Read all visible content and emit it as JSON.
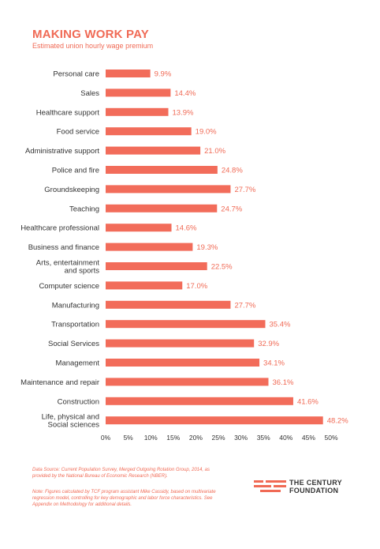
{
  "header": {
    "title": "MAKING WORK PAY",
    "subtitle": "Estimated union hourly wage premium"
  },
  "chart_data": {
    "type": "bar",
    "orientation": "horizontal",
    "title": "MAKING WORK PAY",
    "subtitle": "Estimated union hourly wage premium",
    "categories": [
      [
        "Personal care"
      ],
      [
        "Sales"
      ],
      [
        "Healthcare support"
      ],
      [
        "Food service"
      ],
      [
        "Administrative support"
      ],
      [
        "Police and fire"
      ],
      [
        "Groundskeeping"
      ],
      [
        "Teaching"
      ],
      [
        "Healthcare professional"
      ],
      [
        "Business and finance"
      ],
      [
        "Arts, entertainment",
        "and sports"
      ],
      [
        "Computer science"
      ],
      [
        "Manufacturing"
      ],
      [
        "Transportation"
      ],
      [
        "Social Services"
      ],
      [
        "Management"
      ],
      [
        "Maintenance and repair"
      ],
      [
        "Construction"
      ],
      [
        "Life, physical and",
        "Social sciences"
      ]
    ],
    "values": [
      9.9,
      14.4,
      13.9,
      19.0,
      21.0,
      24.8,
      27.7,
      24.7,
      14.6,
      19.3,
      22.5,
      17.0,
      27.7,
      35.4,
      32.9,
      34.1,
      36.1,
      41.6,
      48.2
    ],
    "value_labels": [
      "9.9%",
      "14.4%",
      "13.9%",
      "19.0%",
      "21.0%",
      "24.8%",
      "27.7%",
      "24.7%",
      "14.6%",
      "19.3%",
      "22.5%",
      "17.0%",
      "27.7%",
      "35.4%",
      "32.9%",
      "34.1%",
      "36.1%",
      "41.6%",
      "48.2%"
    ],
    "xticks": [
      0,
      5,
      10,
      15,
      20,
      25,
      30,
      35,
      40,
      45,
      50
    ],
    "xtick_labels": [
      "0%",
      "5%",
      "10%",
      "15%",
      "20%",
      "25%",
      "30%",
      "35%",
      "40%",
      "45%",
      "50%"
    ],
    "xlim": [
      0,
      50
    ],
    "xlabel": "",
    "ylabel": "",
    "grid": false,
    "bar_color": "#f26c5a"
  },
  "footer": {
    "source": "Data Source: Current Population Survey, Merged Outgoing Rotation Group, 2014, as provided by the National Bureau of Economic Research (NBER).",
    "note": "Note: Figures calculated by TCF program assistant Mike Cassidy, based on multivariate regression model, controlling for key demographic and labor force characteristics. See Appendix on Methodology for additional details.",
    "logo_line1": "THE CENTURY",
    "logo_line2": "FOUNDATION",
    "accent_color": "#f06a55"
  }
}
